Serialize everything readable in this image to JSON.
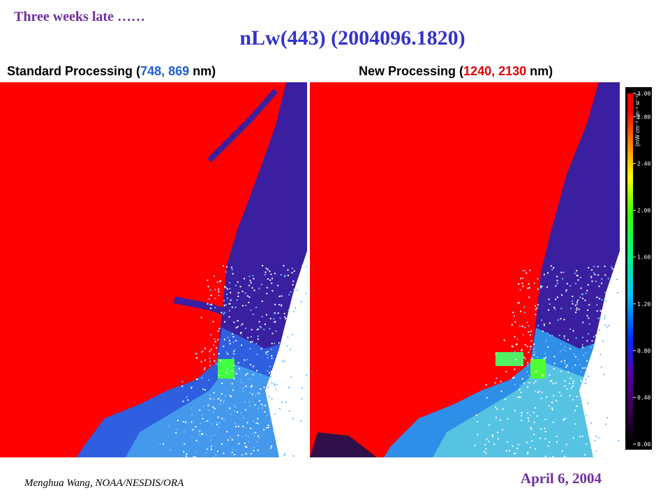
{
  "slide": {
    "note": "Three weeks late ……",
    "title": "nLw(443) (2004096.1820)",
    "panels": [
      {
        "heading": {
          "before": "Standard Processing (",
          "highlight": "748, 869",
          "after": " nm)",
          "highlight_color": "#1f5fd0"
        }
      },
      {
        "heading": {
          "before": "New Processing (",
          "highlight": "1240, 2130",
          "after": " nm)",
          "highlight_color": "#e00000"
        }
      }
    ],
    "colorbar": {
      "unit": "(mW cm⁻² um⁻¹ sr⁻¹)",
      "range": [
        0,
        3
      ],
      "ticks": [
        {
          "value": 3,
          "label": "3.00"
        },
        {
          "value": 2.8,
          "label": "2.80"
        },
        {
          "value": 2.4,
          "label": "2.40"
        },
        {
          "value": 2,
          "label": "2.00"
        },
        {
          "value": 1.6,
          "label": "1.60"
        },
        {
          "value": 1.2,
          "label": "1.20"
        },
        {
          "value": 0.8,
          "label": "0.80"
        },
        {
          "value": 0.4,
          "label": "0.40"
        },
        {
          "value": 0,
          "label": "0.00"
        }
      ]
    },
    "footer": {
      "author": "Menghua Wang, NOAA/NESDIS/ORA",
      "date": "April 6, 2004"
    }
  }
}
